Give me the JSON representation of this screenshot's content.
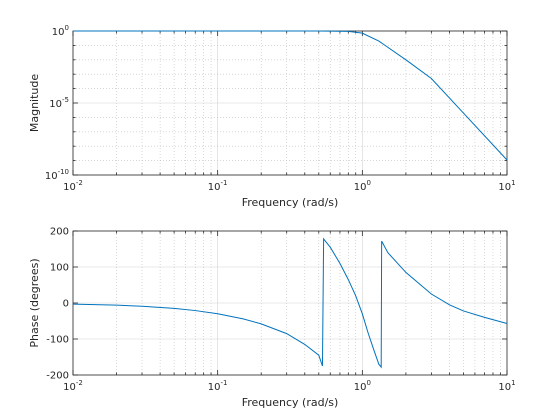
{
  "chart_data": [
    {
      "type": "line",
      "id": "magnitude",
      "xlabel": "Frequency (rad/s)",
      "ylabel": "Magnitude",
      "xscale": "log",
      "yscale": "log",
      "xlim": [
        0.01,
        10
      ],
      "ylim": [
        1e-10,
        1
      ],
      "grid": true,
      "x_ticks": [
        {
          "base": "10",
          "exp": "-2"
        },
        {
          "base": "10",
          "exp": "-1"
        },
        {
          "base": "10",
          "exp": "0"
        },
        {
          "base": "10",
          "exp": "1"
        }
      ],
      "y_ticks": [
        {
          "base": "10",
          "exp": "-10"
        },
        {
          "base": "10",
          "exp": "-5"
        },
        {
          "base": "10",
          "exp": "0"
        }
      ],
      "color": "#0072bd",
      "series": [
        {
          "x": [
            0.01,
            0.1,
            0.3,
            0.5,
            0.8,
            1.0,
            1.3,
            2.0,
            3.0,
            5.0,
            10.0
          ],
          "y": [
            1,
            1,
            1,
            1,
            0.95,
            0.707,
            0.2,
            0.01,
            0.0005,
            2e-06,
            1.1e-09
          ]
        }
      ]
    },
    {
      "type": "line",
      "id": "phase",
      "xlabel": "Frequency (rad/s)",
      "ylabel": "Phase (degrees)",
      "xscale": "log",
      "xlim": [
        0.01,
        10
      ],
      "ylim": [
        -200,
        200
      ],
      "grid": true,
      "x_ticks": [
        {
          "base": "10",
          "exp": "-2"
        },
        {
          "base": "10",
          "exp": "-1"
        },
        {
          "base": "10",
          "exp": "0"
        },
        {
          "base": "10",
          "exp": "1"
        }
      ],
      "y_ticks": [
        "-200",
        "-100",
        "0",
        "100",
        "200"
      ],
      "color": "#0072bd",
      "series": [
        {
          "x": [
            0.01,
            0.02,
            0.03,
            0.05,
            0.07,
            0.1,
            0.15,
            0.2,
            0.3,
            0.4,
            0.5,
            0.53,
            0.54,
            0.6,
            0.7,
            0.8,
            0.9,
            1.0,
            1.1,
            1.2,
            1.3,
            1.35,
            1.36,
            1.5,
            2.0,
            3.0,
            4.0,
            5.0,
            7.0,
            10.0
          ],
          "y": [
            -3,
            -6,
            -9,
            -15,
            -21,
            -30,
            -44,
            -58,
            -85,
            -115,
            -145,
            -175,
            178,
            155,
            110,
            65,
            20,
            -30,
            -85,
            -130,
            -170,
            -178,
            172,
            140,
            85,
            25,
            -5,
            -22,
            -40,
            -57
          ]
        }
      ]
    }
  ]
}
